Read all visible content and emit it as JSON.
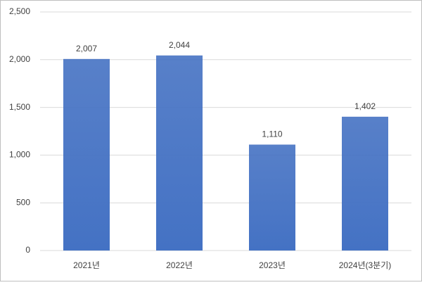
{
  "chart_data": {
    "type": "bar",
    "categories": [
      "2021년",
      "2022년",
      "2023년",
      "2024년(3분기)"
    ],
    "values": [
      2007,
      2044,
      1110,
      1402
    ],
    "value_labels": [
      "2,007",
      "2,044",
      "1,110",
      "1,402"
    ],
    "color": "#4472c4",
    "ylim": [
      0,
      2500
    ],
    "yticks": [
      0,
      500,
      {
        "value": 1000,
        "label": "1,000"
      },
      {
        "value": 1500,
        "label": "1,500"
      },
      {
        "value": 2000,
        "label": "2,000"
      },
      {
        "value": 2500,
        "label": "2,500"
      }
    ],
    "grid": true
  }
}
